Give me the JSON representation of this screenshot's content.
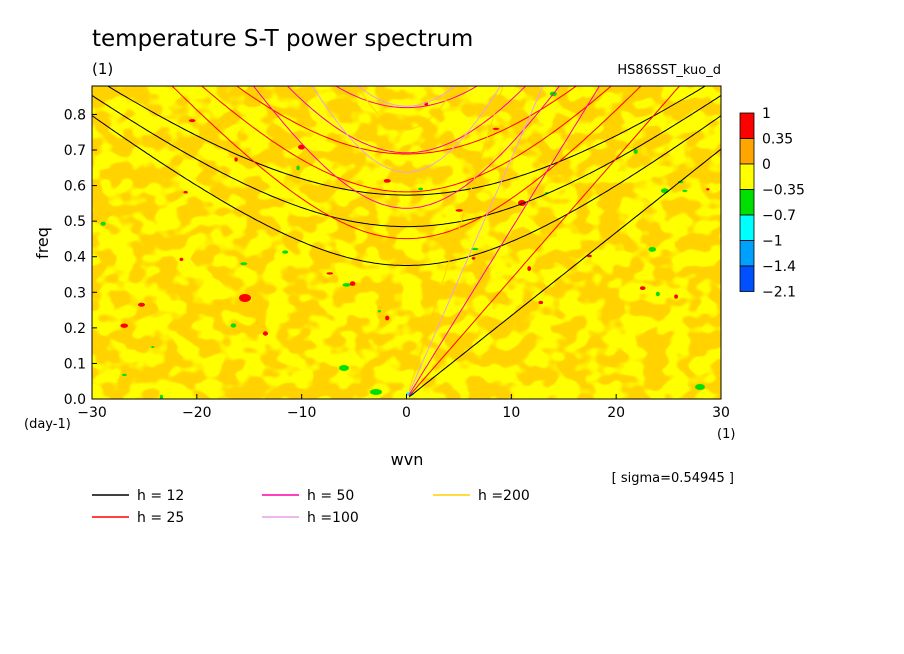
{
  "chart_data": {
    "type": "heatmap",
    "title": "temperature S-T power spectrum",
    "subtitle_left": "(1)",
    "subtitle_right": "HS86SST_kuo_d",
    "xlabel": "wvn",
    "x_unit": "(1)",
    "ylabel": "freq",
    "y_unit": "(day-1)",
    "xlim": [
      -30,
      30
    ],
    "ylim": [
      0,
      0.88
    ],
    "x_ticks": [
      "-30",
      "-20",
      "-10",
      "0",
      "10",
      "20",
      "30"
    ],
    "y_ticks": [
      "0.0",
      "0.1",
      "0.2",
      "0.3",
      "0.4",
      "0.5",
      "0.6",
      "0.7",
      "0.8"
    ],
    "sigma_text": "[ sigma=0.54945 ]",
    "colorbar": {
      "labels": [
        "1",
        "0.35",
        "0",
        "-0.35",
        "-0.7",
        "-1",
        "-1.4",
        "-2.1"
      ],
      "colors": [
        "#ff0000",
        "#ffa500",
        "#ffff00",
        "#00e000",
        "#00ffff",
        "#00a0ff",
        "#0050ff"
      ]
    },
    "field_colors": {
      "positive": "#ffa500",
      "neutral": "#ffff00",
      "high": "#ff0000",
      "low": "#00e000",
      "lower": "#00ffff"
    },
    "dispersion_curves": [
      {
        "label": "h = 12",
        "h": 12,
        "color": "#000000"
      },
      {
        "label": "h = 25",
        "h": 25,
        "color": "#ff0000"
      },
      {
        "label": "h = 50",
        "h": 50,
        "color": "#ff00aa"
      },
      {
        "label": "h =100",
        "h": 100,
        "color": "#e8a0e8"
      },
      {
        "label": "h =200",
        "h": 200,
        "color": "#ffd000"
      }
    ]
  }
}
